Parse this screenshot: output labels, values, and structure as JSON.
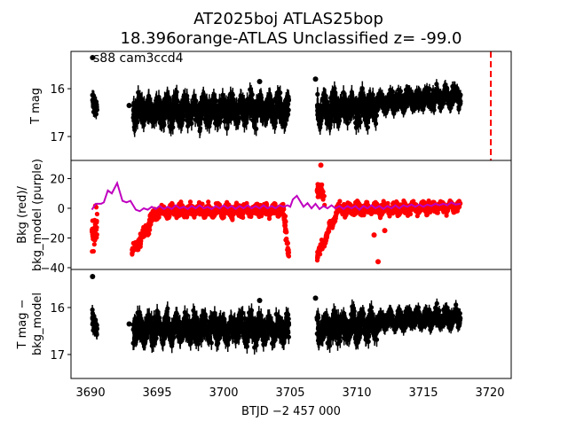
{
  "chart_data": {
    "type": "scatter",
    "title_line1": "AT2025boj  ATLAS25bop",
    "title_line2": "18.396orange-ATLAS Unclassified z= -99.0",
    "xlabel": "BTJD −2 457 000",
    "xlim": [
      3688.53,
      3721.6
    ],
    "xticks": [
      3690,
      3695,
      3700,
      3705,
      3710,
      3715,
      3720
    ],
    "xtick_labels": [
      "3690",
      "3695",
      "3700",
      "3705",
      "3710",
      "3715",
      "3720"
    ],
    "reference_line": {
      "x": 3720.07,
      "color": "#ff0000",
      "style": "dashed"
    },
    "panels": [
      {
        "id": "tmag",
        "ylabel": [
          "T mag"
        ],
        "ylim": [
          17.5,
          15.22
        ],
        "yticks": [
          16,
          17
        ],
        "ytick_labels": [
          "16",
          "17"
        ],
        "annotation": "s88 cam3ccd4",
        "series": [
          {
            "name": "T mag",
            "color": "#000000",
            "segments": [
              {
                "start": 3690.1,
                "end": 3690.5,
                "center_start": 16.35,
                "center_end": 16.35,
                "spread": 0.35
              },
              {
                "start": 3693.2,
                "end": 3704.9,
                "center_start": 16.45,
                "center_end": 16.45,
                "spread": 0.5
              },
              {
                "start": 3707.0,
                "end": 3711.5,
                "center_start": 16.45,
                "center_end": 16.4,
                "spread": 0.5
              },
              {
                "start": 3711.5,
                "end": 3717.8,
                "center_start": 16.3,
                "center_end": 16.15,
                "spread": 0.35
              }
            ],
            "outliers": [
              [
                3690.15,
                15.35
              ],
              [
                3692.9,
                16.35
              ],
              [
                3702.7,
                15.85
              ],
              [
                3706.9,
                15.8
              ]
            ]
          }
        ]
      },
      {
        "id": "bkg",
        "ylabel": [
          "Bkg (red)/",
          "bkg_model (purple)"
        ],
        "ylim": [
          -41.2,
          32.2
        ],
        "yticks": [
          20,
          0,
          -20,
          -40
        ],
        "ytick_labels": [
          "20",
          "0",
          "−20",
          "−40"
        ],
        "series": [
          {
            "name": "Bkg",
            "color": "#ff0000",
            "segments": [
              {
                "start": 3690.1,
                "end": 3690.5,
                "center_start": -15,
                "center_end": -15,
                "spread": 22
              },
              {
                "start": 3693.1,
                "end": 3695.0,
                "center_start": -30,
                "center_end": -2,
                "spread": 8
              },
              {
                "start": 3695.0,
                "end": 3704.5,
                "center_start": -2,
                "center_end": -1,
                "spread": 7
              },
              {
                "start": 3704.5,
                "end": 3704.9,
                "center_start": -5,
                "center_end": -28,
                "spread": 12
              },
              {
                "start": 3707.0,
                "end": 3707.6,
                "center_start": 12,
                "center_end": 8,
                "spread": 10
              },
              {
                "start": 3707.0,
                "end": 3708.5,
                "center_start": -33,
                "center_end": -3,
                "spread": 6
              },
              {
                "start": 3708.5,
                "end": 3717.8,
                "center_start": -1,
                "center_end": 1,
                "spread": 7
              }
            ],
            "outliers": [
              [
                3707.3,
                29
              ],
              [
                3711.6,
                -36
              ],
              [
                3711.3,
                -18
              ],
              [
                3712.1,
                -15
              ]
            ]
          },
          {
            "name": "bkg_model",
            "color": "#bf00bf",
            "line": true,
            "points": [
              [
                3690.1,
                -1
              ],
              [
                3690.4,
                3
              ],
              [
                3690.8,
                3
              ],
              [
                3691.0,
                4
              ],
              [
                3691.3,
                12
              ],
              [
                3691.6,
                10
              ],
              [
                3692.0,
                17
              ],
              [
                3692.4,
                5
              ],
              [
                3692.7,
                4
              ],
              [
                3693.0,
                5
              ],
              [
                3693.4,
                -1
              ],
              [
                3693.7,
                -2
              ],
              [
                3694.0,
                0
              ],
              [
                3694.3,
                -1
              ],
              [
                3694.6,
                1
              ],
              [
                3694.9,
                -0.5
              ],
              [
                3695.2,
                1.5
              ],
              [
                3695.5,
                -0.5
              ],
              [
                3695.8,
                1
              ],
              [
                3696.1,
                -0.5
              ],
              [
                3696.4,
                2
              ],
              [
                3696.7,
                0
              ],
              [
                3697.0,
                1
              ],
              [
                3697.3,
                -0.5
              ],
              [
                3697.6,
                1.5
              ],
              [
                3697.9,
                0
              ],
              [
                3698.2,
                2
              ],
              [
                3698.5,
                0
              ],
              [
                3698.8,
                1
              ],
              [
                3699.1,
                -0.5
              ],
              [
                3699.4,
                1.5
              ],
              [
                3699.7,
                0
              ],
              [
                3700.0,
                2
              ],
              [
                3700.3,
                0
              ],
              [
                3700.6,
                1.5
              ],
              [
                3700.9,
                -0.5
              ],
              [
                3701.2,
                1.5
              ],
              [
                3701.5,
                0
              ],
              [
                3701.8,
                2
              ],
              [
                3702.1,
                0
              ],
              [
                3702.4,
                1.5
              ],
              [
                3702.7,
                0
              ],
              [
                3703.0,
                2
              ],
              [
                3703.3,
                0
              ],
              [
                3703.6,
                1.5
              ],
              [
                3703.9,
                0
              ],
              [
                3704.2,
                2
              ],
              [
                3704.5,
                1
              ],
              [
                3704.8,
                2
              ],
              [
                3705.0,
                1
              ],
              [
                3705.2,
                6
              ],
              [
                3705.5,
                8.4
              ],
              [
                3705.8,
                4
              ],
              [
                3706.0,
                1
              ],
              [
                3706.3,
                3.5
              ],
              [
                3706.6,
                0
              ],
              [
                3706.9,
                3
              ],
              [
                3707.2,
                -0.5
              ],
              [
                3707.5,
                1.5
              ],
              [
                3707.8,
                0
              ],
              [
                3708.1,
                2
              ],
              [
                3708.4,
                0
              ],
              [
                3708.7,
                1.5
              ],
              [
                3709.0,
                -0.5
              ],
              [
                3709.3,
                1.5
              ],
              [
                3709.6,
                0
              ],
              [
                3709.9,
                1.5
              ],
              [
                3710.2,
                -1
              ],
              [
                3710.5,
                1.5
              ],
              [
                3710.8,
                0
              ],
              [
                3711.1,
                2
              ],
              [
                3711.4,
                0
              ],
              [
                3711.7,
                1.5
              ],
              [
                3712.0,
                -0.5
              ],
              [
                3712.3,
                1.5
              ],
              [
                3712.6,
                0
              ],
              [
                3712.9,
                2
              ],
              [
                3713.2,
                0
              ],
              [
                3713.5,
                2
              ],
              [
                3713.8,
                1
              ],
              [
                3714.1,
                2.5
              ],
              [
                3714.4,
                1
              ],
              [
                3714.7,
                2.5
              ],
              [
                3715.0,
                1
              ],
              [
                3715.3,
                2.5
              ],
              [
                3715.6,
                1.5
              ],
              [
                3715.9,
                3
              ],
              [
                3716.2,
                2
              ],
              [
                3716.5,
                3
              ],
              [
                3716.8,
                2
              ],
              [
                3717.1,
                4
              ],
              [
                3717.4,
                2.5
              ],
              [
                3717.8,
                3
              ]
            ]
          }
        ]
      },
      {
        "id": "tmag_minus_model",
        "ylabel": [
          "T mag −",
          "bkg_model"
        ],
        "ylim": [
          17.51,
          15.19
        ],
        "yticks": [
          16,
          17
        ],
        "ytick_labels": [
          "16",
          "17"
        ],
        "series": [
          {
            "name": "T mag - bkg_model",
            "color": "#000000",
            "segments": [
              {
                "start": 3690.1,
                "end": 3690.5,
                "center_start": 16.35,
                "center_end": 16.35,
                "spread": 0.35
              },
              {
                "start": 3693.2,
                "end": 3704.9,
                "center_start": 16.45,
                "center_end": 16.45,
                "spread": 0.5
              },
              {
                "start": 3707.0,
                "end": 3711.5,
                "center_start": 16.45,
                "center_end": 16.4,
                "spread": 0.5
              },
              {
                "start": 3711.5,
                "end": 3717.8,
                "center_start": 16.3,
                "center_end": 16.2,
                "spread": 0.35
              }
            ],
            "outliers": [
              [
                3690.15,
                15.34
              ],
              [
                3692.9,
                16.35
              ],
              [
                3702.7,
                15.85
              ],
              [
                3706.9,
                15.8
              ]
            ]
          }
        ]
      }
    ]
  }
}
